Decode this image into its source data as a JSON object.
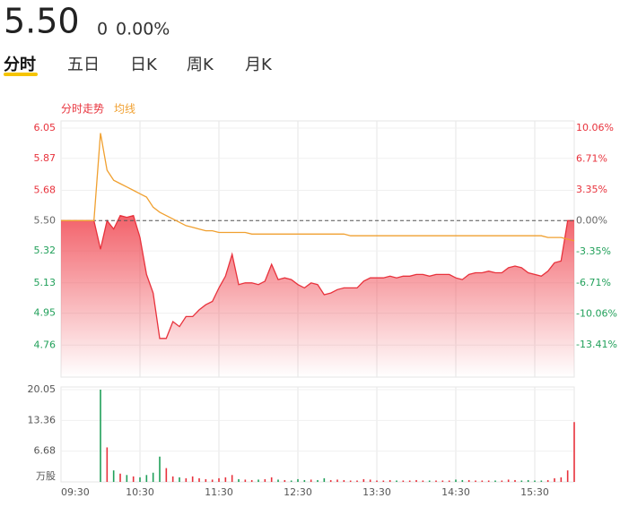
{
  "quote": {
    "price": "5.50",
    "change": "0",
    "change_pct": "0.00%"
  },
  "tabs": [
    "分时",
    "五日",
    "日K",
    "周K",
    "月K"
  ],
  "active_tab": 0,
  "chart_data": [
    {
      "type": "line",
      "prev_close": 5.5,
      "x": [
        "09:30",
        "09:35",
        "09:40",
        "09:45",
        "09:50",
        "09:55",
        "10:00",
        "10:05",
        "10:10",
        "10:15",
        "10:20",
        "10:25",
        "10:30",
        "10:35",
        "10:40",
        "10:45",
        "10:50",
        "10:55",
        "11:00",
        "11:05",
        "11:10",
        "11:15",
        "11:20",
        "11:25",
        "11:30",
        "11:35",
        "11:40",
        "11:45",
        "11:50",
        "11:55",
        "12:00",
        "12:05",
        "12:10",
        "12:15",
        "12:20",
        "12:25",
        "12:30",
        "12:35",
        "12:40",
        "12:45",
        "12:50",
        "12:55",
        "13:00",
        "13:05",
        "13:10",
        "13:15",
        "13:20",
        "13:25",
        "13:30",
        "13:35",
        "13:40",
        "13:45",
        "13:50",
        "13:55",
        "14:00",
        "14:05",
        "14:10",
        "14:15",
        "14:20",
        "14:25",
        "14:30",
        "14:35",
        "14:40",
        "14:45",
        "14:50",
        "14:55",
        "15:00",
        "15:05",
        "15:10",
        "15:15",
        "15:20",
        "15:25",
        "15:30",
        "15:35",
        "15:40",
        "15:45",
        "15:50",
        "15:55",
        "16:00"
      ],
      "xlim": [
        "09:30",
        "16:00"
      ],
      "series": [
        {
          "name": "分时走势",
          "color": "#e8323c",
          "values": [
            5.5,
            5.5,
            5.5,
            5.5,
            5.5,
            5.5,
            5.33,
            5.5,
            5.45,
            5.53,
            5.52,
            5.53,
            5.4,
            5.18,
            5.07,
            4.8,
            4.8,
            4.9,
            4.87,
            4.93,
            4.93,
            4.97,
            5.0,
            5.02,
            5.1,
            5.17,
            5.3,
            5.12,
            5.13,
            5.13,
            5.12,
            5.14,
            5.24,
            5.15,
            5.16,
            5.15,
            5.12,
            5.1,
            5.13,
            5.12,
            5.06,
            5.07,
            5.09,
            5.1,
            5.1,
            5.1,
            5.14,
            5.16,
            5.16,
            5.16,
            5.17,
            5.16,
            5.17,
            5.17,
            5.18,
            5.18,
            5.17,
            5.18,
            5.18,
            5.18,
            5.16,
            5.15,
            5.18,
            5.19,
            5.19,
            5.2,
            5.19,
            5.19,
            5.22,
            5.23,
            5.22,
            5.19,
            5.18,
            5.17,
            5.2,
            5.25,
            5.26,
            5.5,
            5.5
          ]
        },
        {
          "name": "均线",
          "color": "#f0a030",
          "values": [
            5.5,
            5.5,
            5.5,
            5.5,
            5.5,
            5.5,
            6.02,
            5.8,
            5.74,
            5.72,
            5.7,
            5.68,
            5.66,
            5.64,
            5.58,
            5.55,
            5.53,
            5.51,
            5.49,
            5.47,
            5.46,
            5.45,
            5.44,
            5.44,
            5.43,
            5.43,
            5.43,
            5.43,
            5.43,
            5.42,
            5.42,
            5.42,
            5.42,
            5.42,
            5.42,
            5.42,
            5.42,
            5.42,
            5.42,
            5.42,
            5.42,
            5.42,
            5.42,
            5.42,
            5.41,
            5.41,
            5.41,
            5.41,
            5.41,
            5.41,
            5.41,
            5.41,
            5.41,
            5.41,
            5.41,
            5.41,
            5.41,
            5.41,
            5.41,
            5.41,
            5.41,
            5.41,
            5.41,
            5.41,
            5.41,
            5.41,
            5.41,
            5.41,
            5.41,
            5.41,
            5.41,
            5.41,
            5.41,
            5.41,
            5.4,
            5.4,
            5.4,
            5.39,
            5.38
          ]
        }
      ],
      "ylim": [
        4.57,
        6.05
      ],
      "yticks": [
        4.76,
        4.95,
        5.13,
        5.32,
        {
          "value": 5.5,
          "label": "5.50"
        },
        5.68,
        5.87,
        6.05
      ],
      "y2lim": [
        -16.91,
        10.06
      ],
      "y2ticks": [
        {
          "value": -13.41,
          "label": "-13.41%"
        },
        {
          "value": -10.06,
          "label": "-10.06%"
        },
        {
          "value": -6.71,
          "label": "-6.71%"
        },
        {
          "value": -3.35,
          "label": "-3.35%"
        },
        {
          "value": 0,
          "label": "0.00%"
        },
        {
          "value": 3.35,
          "label": "3.35%"
        },
        {
          "value": 6.71,
          "label": "6.71%"
        },
        {
          "value": 10.06,
          "label": "10.06%"
        }
      ],
      "up_color": "#e8323c",
      "down_color": "#21a05a",
      "flat_color": "#666666",
      "grid": true
    },
    {
      "type": "bar",
      "values": [
        0,
        0,
        0,
        0,
        0,
        0,
        20.05,
        7.5,
        2.5,
        1.8,
        1.5,
        1.2,
        1.0,
        1.5,
        2.0,
        5.5,
        3.0,
        1.2,
        1.0,
        0.8,
        1.2,
        0.8,
        0.6,
        0.5,
        0.8,
        1.0,
        1.5,
        0.6,
        0.5,
        0.4,
        0.5,
        0.6,
        1.0,
        0.5,
        0.4,
        0.3,
        0.6,
        0.4,
        0.5,
        0.4,
        0.8,
        0.4,
        0.5,
        0.4,
        0.3,
        0.3,
        0.6,
        0.5,
        0.3,
        0.3,
        0.4,
        0.3,
        0.3,
        0.3,
        0.4,
        0.3,
        0.3,
        0.3,
        0.3,
        0.3,
        0.5,
        0.4,
        0.4,
        0.3,
        0.3,
        0.3,
        0.3,
        0.3,
        0.5,
        0.4,
        0.3,
        0.4,
        0.3,
        0.3,
        0.4,
        0.8,
        1.0,
        2.5,
        13.0
      ],
      "ylim": [
        0,
        20.05
      ],
      "yticks": [
        {
          "value": 0,
          "label": "万股"
        },
        6.68,
        13.36,
        20.05
      ],
      "xticks": [
        "09:30",
        "10:30",
        "11:30",
        "12:30",
        "13:30",
        "14:30",
        "15:30"
      ],
      "up_color": "#e8323c",
      "down_color": "#21a05a",
      "grid": true
    }
  ]
}
